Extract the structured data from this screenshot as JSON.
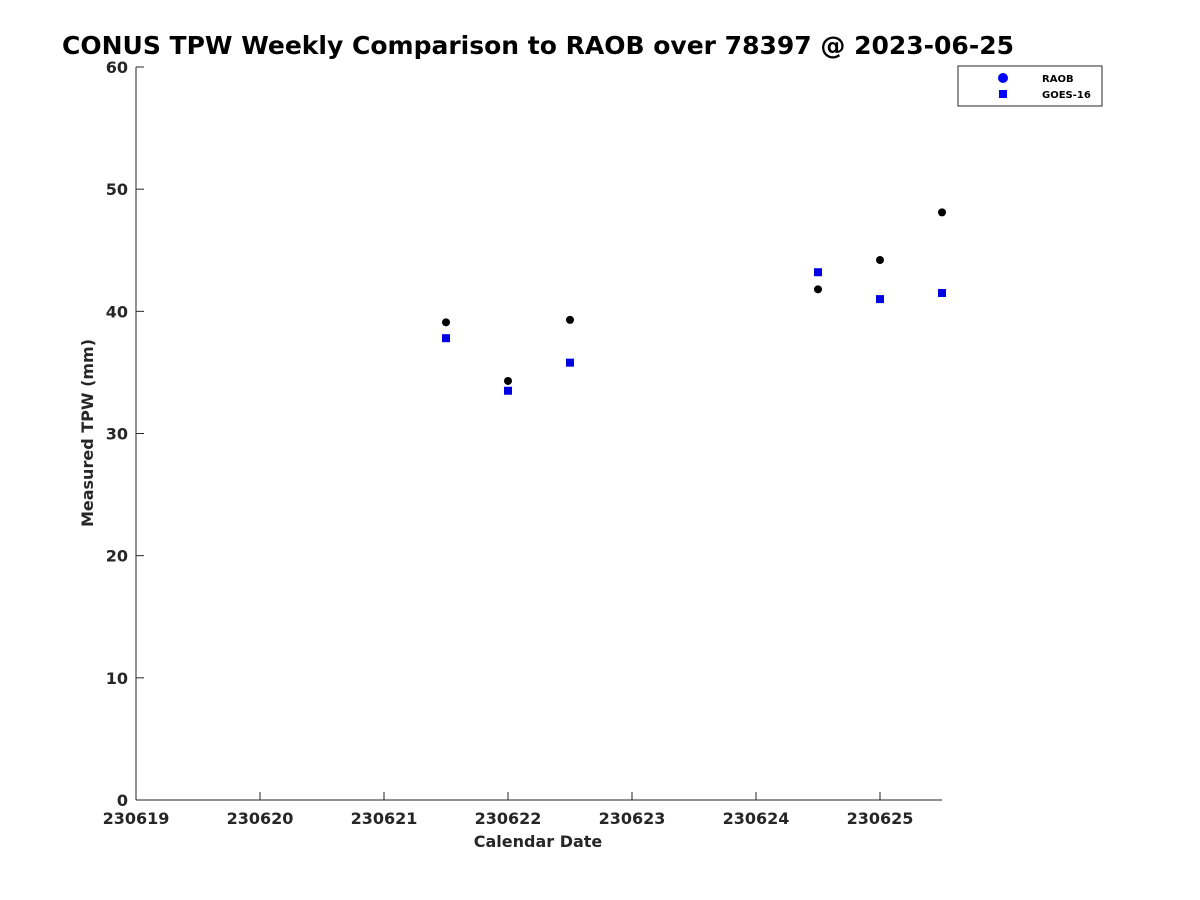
{
  "chart_data": {
    "type": "scatter",
    "title": "CONUS TPW Weekly Comparison to RAOB over 78397 @ 2023-06-25",
    "xlabel": "Calendar Date",
    "ylabel": "Measured TPW (mm)",
    "xlim": [
      "230619",
      "230625.5"
    ],
    "ylim": [
      0,
      60
    ],
    "x_ticks": [
      "230619",
      "230620",
      "230621",
      "230622",
      "230623",
      "230624",
      "230625"
    ],
    "y_ticks": [
      "0",
      "10",
      "20",
      "30",
      "40",
      "50",
      "60"
    ],
    "grid": false,
    "legend_position": "top-right",
    "series": [
      {
        "name": "RAOB",
        "marker": "circle",
        "color": "#000000",
        "legend_color": "#0000ff",
        "points": [
          {
            "x": "230621.5",
            "y": 39.1
          },
          {
            "x": "230622",
            "y": 34.3
          },
          {
            "x": "230622.5",
            "y": 39.3
          },
          {
            "x": "230624.5",
            "y": 41.8
          },
          {
            "x": "230625",
            "y": 44.2
          },
          {
            "x": "230625.5",
            "y": 48.1
          }
        ]
      },
      {
        "name": "GOES-16",
        "marker": "square",
        "color": "#0000e0",
        "legend_color": "#0000ff",
        "points": [
          {
            "x": "230621.5",
            "y": 37.8
          },
          {
            "x": "230622",
            "y": 33.5
          },
          {
            "x": "230622.5",
            "y": 35.8
          },
          {
            "x": "230624.5",
            "y": 43.2
          },
          {
            "x": "230625",
            "y": 41.0
          },
          {
            "x": "230625.5",
            "y": 41.5
          }
        ]
      }
    ]
  }
}
